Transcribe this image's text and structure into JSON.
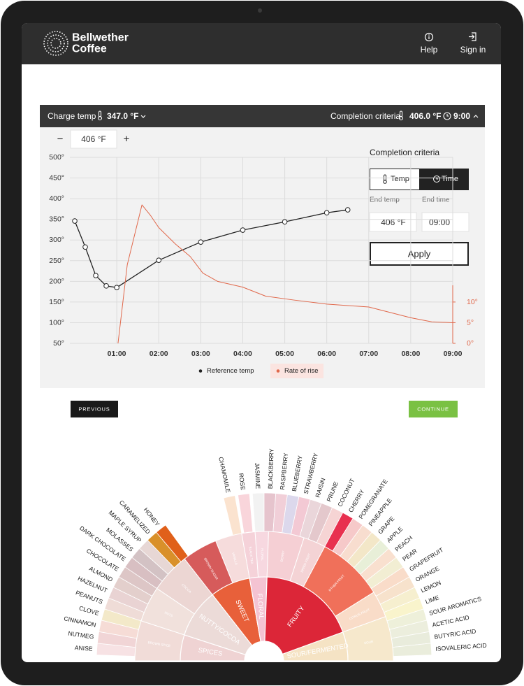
{
  "header": {
    "brand_line1": "Bellwether",
    "brand_line2": "Coffee",
    "help": "Help",
    "sign_in": "Sign in"
  },
  "settings_bar": {
    "charge_label": "Charge temp",
    "charge_value": "347.0 °F",
    "completion_label": "Completion criteria",
    "completion_temp": "406.0 °F",
    "completion_time": "9:00"
  },
  "stepper": {
    "minus": "−",
    "value": "406 °F",
    "plus": "+"
  },
  "completion_panel": {
    "title": "Completion criteria",
    "toggle": [
      "Temp",
      "Time"
    ],
    "end_temp_label": "End temp",
    "end_time_label": "End time",
    "end_temp_value": "406 °F",
    "end_time_value": "09:00",
    "apply": "Apply"
  },
  "chart_data": {
    "type": "line",
    "xlim": [
      0,
      9
    ],
    "xticks": [
      {
        "value": 1,
        "label": "01:00"
      },
      {
        "value": 2,
        "label": "02:00"
      },
      {
        "value": 3,
        "label": "03:00"
      },
      {
        "value": 4,
        "label": "04:00"
      },
      {
        "value": 5,
        "label": "05:00"
      },
      {
        "value": 6,
        "label": "06:00"
      },
      {
        "value": 7,
        "label": "07:00"
      },
      {
        "value": 8,
        "label": "08:00"
      },
      {
        "value": 9,
        "label": "09:00"
      }
    ],
    "ylim": [
      50,
      500
    ],
    "yticks": [
      {
        "value": 50,
        "label": "50°"
      },
      {
        "value": 100,
        "label": "100°"
      },
      {
        "value": 150,
        "label": "150°"
      },
      {
        "value": 200,
        "label": "200°"
      },
      {
        "value": 250,
        "label": "250°"
      },
      {
        "value": 300,
        "label": "300°"
      },
      {
        "value": 350,
        "label": "350°"
      },
      {
        "value": 400,
        "label": "400°"
      },
      {
        "value": 450,
        "label": "450°"
      },
      {
        "value": 500,
        "label": "500°"
      }
    ],
    "y2lim": [
      0,
      45
    ],
    "y2ticks": [
      {
        "value": 0,
        "label": "0°"
      },
      {
        "value": 5,
        "label": "5°"
      },
      {
        "value": 10,
        "label": "10°"
      }
    ],
    "grid": true,
    "legend": "bottom",
    "series": [
      {
        "name": "Reference temp",
        "color": "#222222",
        "x": [
          0,
          0.25,
          0.5,
          0.75,
          1,
          2,
          3,
          4,
          5,
          6,
          6.5
        ],
        "values": [
          346,
          283,
          214,
          189,
          185,
          251,
          295,
          324,
          344,
          366,
          373
        ]
      },
      {
        "name": "Rate of rise",
        "color": "#e0674a",
        "axis": "y2",
        "x": [
          1.03,
          1.25,
          1.6,
          1.8,
          2.0,
          2.4,
          2.75,
          3.05,
          3.4,
          4.0,
          4.55,
          5.2,
          6.0,
          7.0,
          8.0,
          8.5,
          9.0
        ],
        "values": [
          0,
          19,
          33.5,
          31,
          28,
          24,
          21,
          17,
          15,
          13.6,
          11.4,
          10.5,
          9.5,
          8.8,
          6.2,
          5.2,
          5
        ]
      }
    ]
  },
  "navigation": {
    "previous": "PREVIOUS",
    "continue": "CONTINUE"
  },
  "flavor_wheel": {
    "categories": [
      "SPICES",
      "NUTTY/COCOA",
      "SWEET",
      "FLORAL",
      "FRUITY",
      "SOUR/FERMENTED"
    ],
    "subcategories": [
      "BROWN SPICE",
      "NUTS",
      "COCOA",
      "BROWN SUGAR",
      "VANILLA",
      "BLACK TEA",
      "FLORAL",
      "BERRY",
      "DRIED FRUIT",
      "OTHER FRUIT",
      "CITRUS FRUIT",
      "SOUR"
    ],
    "flavors": [
      "ANISE",
      "NUTMEG",
      "CINNAMON",
      "CLOVE",
      "PEANUTS",
      "HAZELNUT",
      "ALMOND",
      "CHOCOLATE",
      "DARK CHOCOLATE",
      "MOLASSES",
      "MAPLE SYRUP",
      "CARAMELIZED",
      "HONEY",
      "CHAMOMILE",
      "ROSE",
      "JASMINE",
      "BLACKBERRY",
      "RASPBERRY",
      "BLUEBERRY",
      "STRAWBERRY",
      "RAISIN",
      "PRUNE",
      "COCONUT",
      "CHERRY",
      "POMEGRANATE",
      "PINEAPPLE",
      "GRAPE",
      "APPLE",
      "PEACH",
      "PEAR",
      "GRAPEFRUIT",
      "ORANGE",
      "LEMON",
      "LIME",
      "SOUR AROMATICS",
      "ACETIC ACID",
      "BUTYRIC ACID",
      "ISOVALERIC ACID"
    ]
  }
}
